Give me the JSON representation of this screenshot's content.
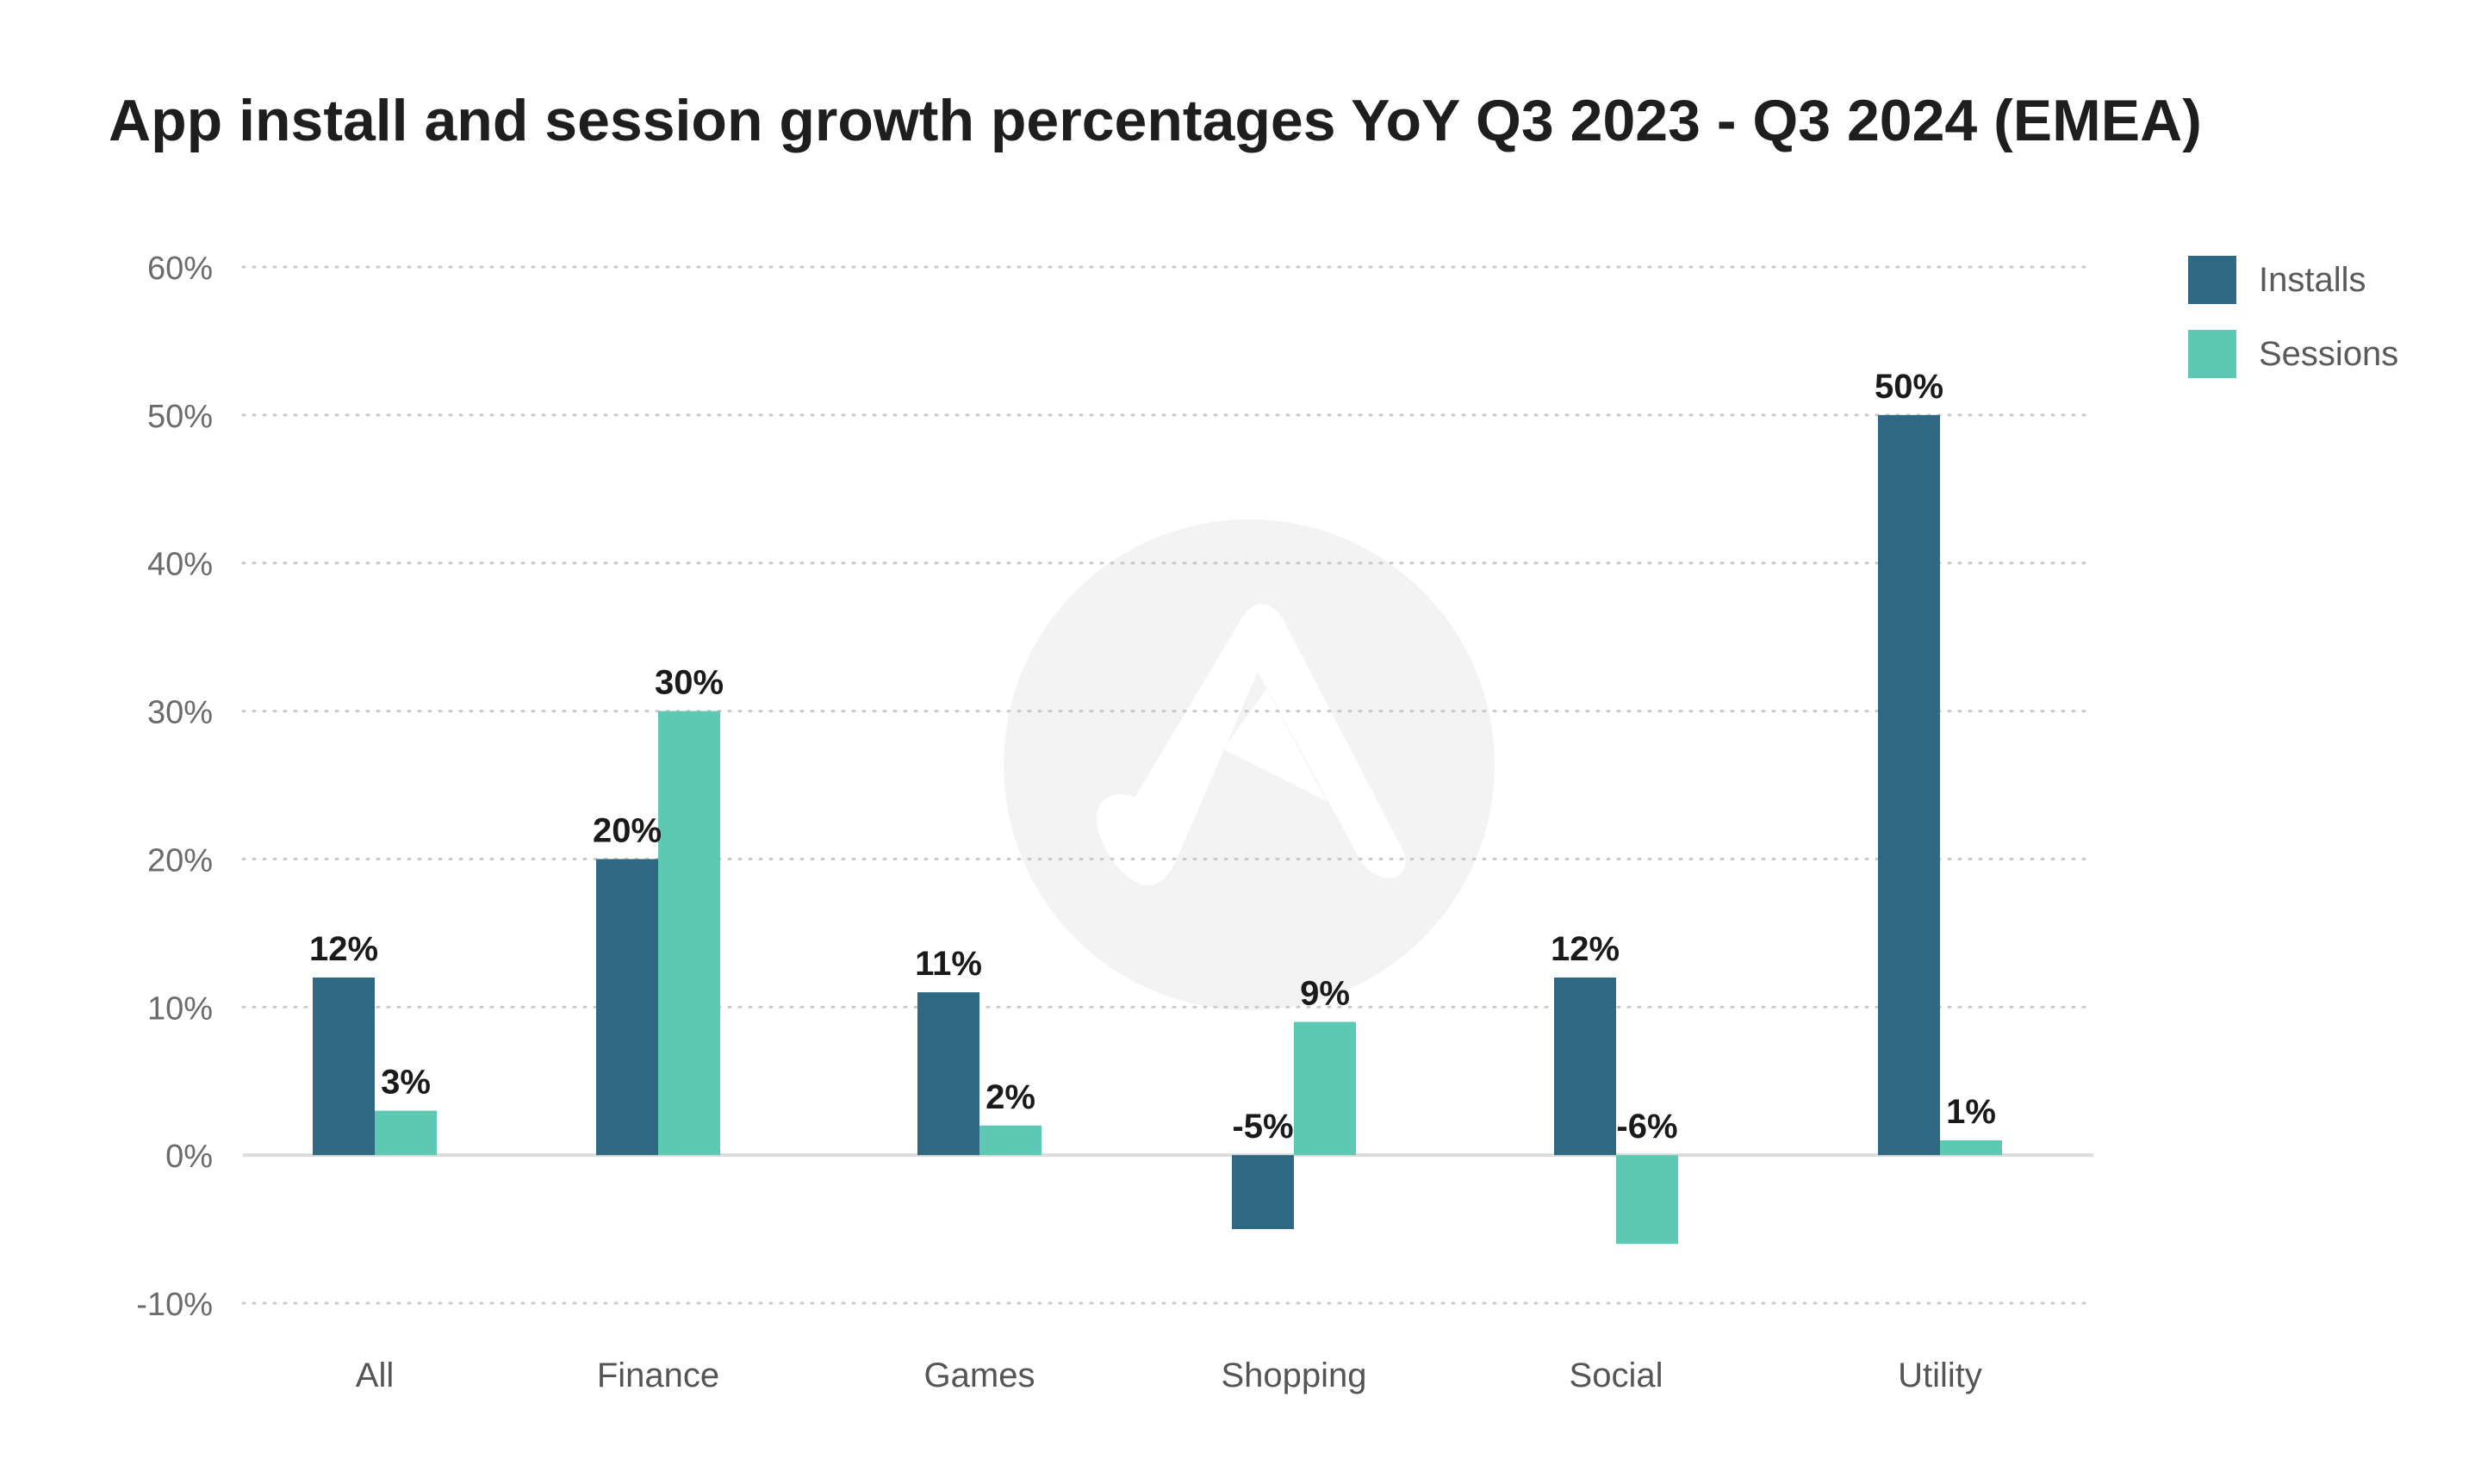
{
  "chart_data": {
    "type": "bar",
    "title": "App install and session growth percentages YoY Q3 2023 - Q3 2024 (EMEA)",
    "xlabel": "",
    "ylabel": "",
    "categories": [
      "All",
      "Finance",
      "Games",
      "Shopping",
      "Social",
      "Utility"
    ],
    "series": [
      {
        "name": "Installs",
        "color": "#2e6882",
        "values": [
          12,
          20,
          11,
          -5,
          12,
          50
        ],
        "labels": [
          "12%",
          "20%",
          "11%",
          "-5%",
          "12%",
          "50%"
        ]
      },
      {
        "name": "Sessions",
        "color": "#5ec9b3",
        "values": [
          3,
          30,
          2,
          9,
          -6,
          1
        ],
        "labels": [
          "3%",
          "30%",
          "2%",
          "9%",
          "-6%",
          "1%"
        ]
      }
    ],
    "ylim": [
      -10,
      60
    ],
    "yticks": [
      -10,
      0,
      10,
      20,
      30,
      40,
      50,
      60
    ],
    "ytick_labels": [
      "-10%",
      "0%",
      "10%",
      "20%",
      "30%",
      "40%",
      "50%",
      "60%"
    ],
    "grid": true,
    "legend_position": "top-right"
  },
  "colors": {
    "installs": "#2e6882",
    "sessions": "#5ec9b3",
    "grid": "#c9c9c9",
    "zero_line": "#dcdcdc",
    "watermark": "#f3f3f3"
  }
}
